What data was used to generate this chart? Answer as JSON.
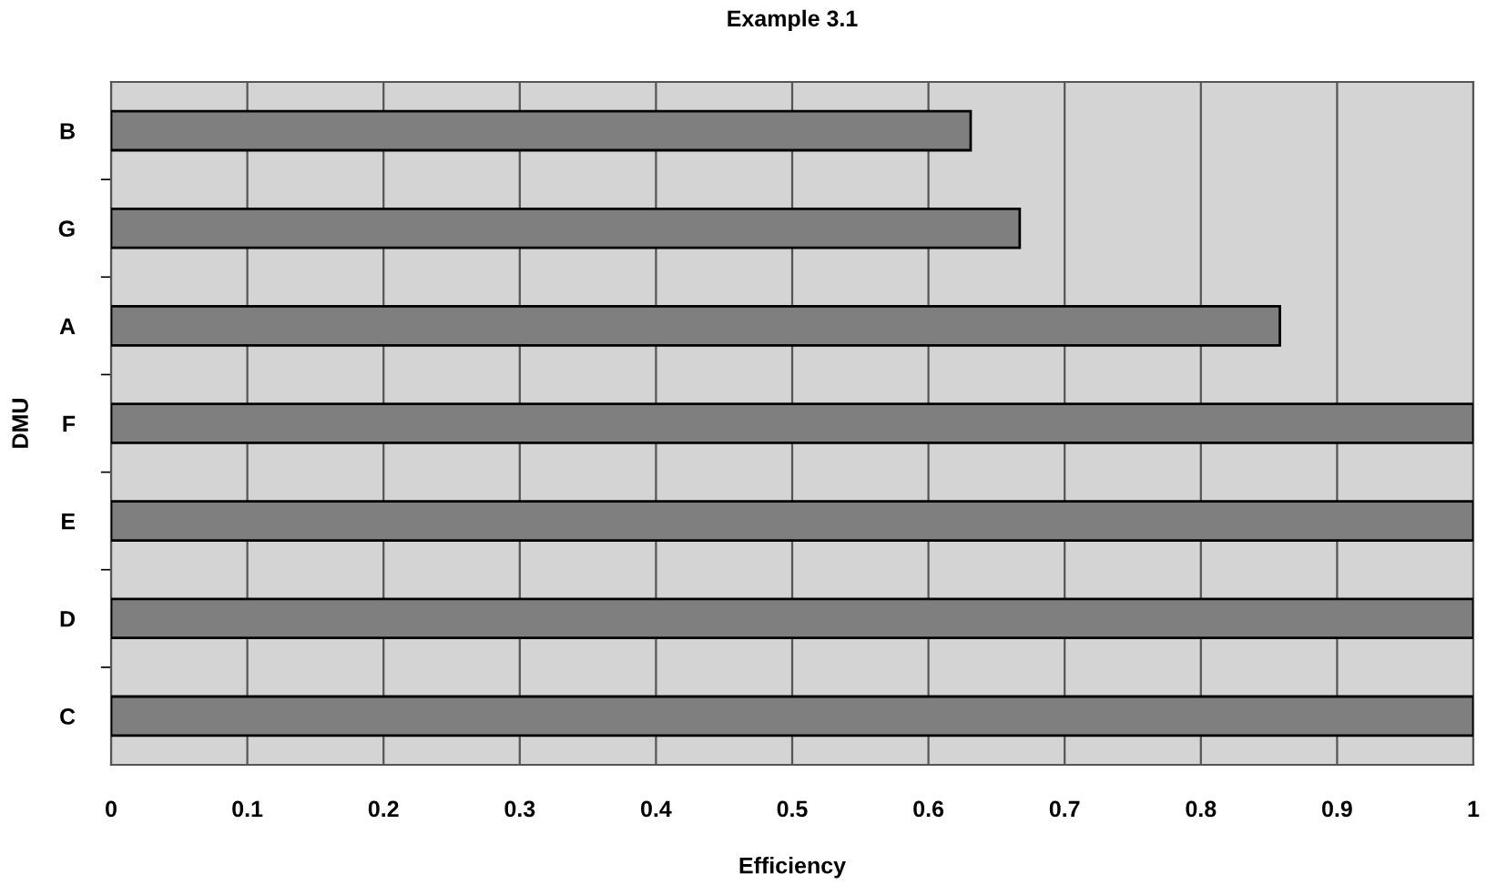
{
  "chart_data": {
    "type": "bar",
    "orientation": "horizontal",
    "title": "Example 3.1",
    "xlabel": "Efficiency",
    "ylabel": "DMU",
    "categories": [
      "B",
      "G",
      "A",
      "F",
      "E",
      "D",
      "C"
    ],
    "values": [
      0.631,
      0.667,
      0.858,
      1,
      1,
      1,
      1
    ],
    "color": "#7f7f7f",
    "xlim": [
      0,
      1
    ],
    "xticks": [
      0,
      0.1,
      0.2,
      0.3,
      0.4,
      0.5,
      0.6,
      0.7,
      0.8,
      0.9,
      1
    ],
    "grid": "x"
  }
}
